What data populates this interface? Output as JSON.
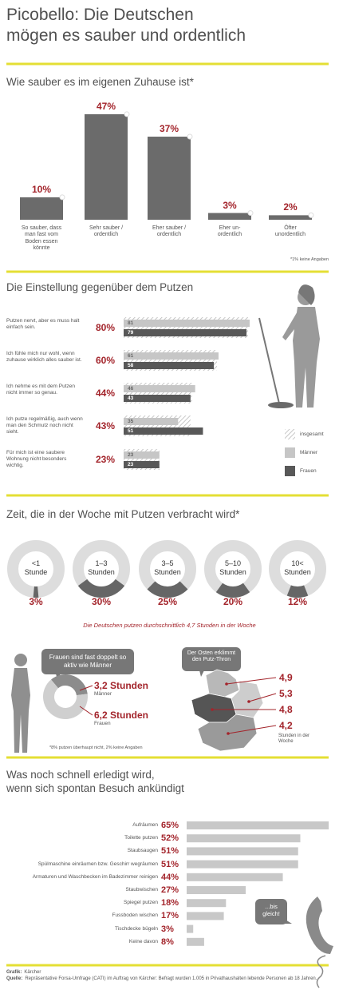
{
  "header": {
    "title": [
      "Picobello: Die Deutschen",
      "mögen es sauber und ordentlich"
    ]
  },
  "chart_data": [
    {
      "type": "bar",
      "title": "Wie sauber es im eigenen Zuhause ist*",
      "categories": [
        "So sauber, dass man fast vom Boden essen könnte",
        "Sehr sauber / ordentlich",
        "Eher sauber / ordentlich",
        "Eher un-ordentlich",
        "Öfter unordentlich"
      ],
      "values": [
        10,
        47,
        37,
        3,
        2
      ],
      "value_labels": [
        "10%",
        "47%",
        "37%",
        "3%",
        "2%"
      ],
      "color": "#6b6b6b",
      "label_color": "#a3242b",
      "note": "*1% keine Angaben"
    },
    {
      "type": "grouped-hbar",
      "title": "Die Einstellung gegenüber dem Putzen",
      "categories": [
        "Putzen nervt, aber es muss halt einfach sein.",
        "Ich fühle mich nur wohl, wenn zuhause wirklich alles sauber ist.",
        "Ich nehme es mit dem Putzen nicht immer so genau.",
        "Ich putze regelmäßig, auch wenn man den Schmutz noch nicht sieht.",
        "Für mich ist eine saubere Wohnung nicht besonders wichtig."
      ],
      "series": [
        {
          "name": "insgesamt",
          "color": "#b5b5b5",
          "pattern": "hatch",
          "values": [
            80,
            60,
            44,
            43,
            23
          ],
          "value_labels": [
            "80%",
            "60%",
            "44%",
            "43%",
            "23%"
          ]
        },
        {
          "name": "Männer",
          "color": "#c6c6c6",
          "values": [
            81,
            61,
            46,
            35,
            23
          ]
        },
        {
          "name": "Frauen",
          "color": "#585858",
          "values": [
            79,
            58,
            43,
            51,
            23
          ]
        }
      ],
      "label_color": "#a3242b"
    },
    {
      "type": "donut-row",
      "title": "Zeit, die in der Woche mit Putzen verbracht wird*",
      "categories": [
        "<1 Stunde",
        "1–3 Stunden",
        "3–5 Stunden",
        "5–10 Stunden",
        "10< Stunden"
      ],
      "values": [
        3,
        30,
        25,
        20,
        12
      ],
      "value_labels": [
        "3%",
        "30%",
        "25%",
        "20%",
        "12%"
      ],
      "color": "#666666",
      "track_color": "#dddddd",
      "label_color": "#a3242b",
      "subtitle": "Die Deutschen putzen durchschnittlich 4,7 Stunden in der Woche"
    },
    {
      "type": "donut",
      "callout": "Frauen sind fast doppelt so aktiv wie Männer",
      "categories": [
        "Männer",
        "Frauen"
      ],
      "values": [
        3.2,
        6.2
      ],
      "value_labels": [
        "3,2 Stunden",
        "6,2 Stunden"
      ],
      "colors": [
        "#8c8c8c",
        "#cfcfcf"
      ],
      "label_color": "#a3242b",
      "note": "*8% putzen überhaupt nicht, 2% keine Angaben"
    },
    {
      "type": "map",
      "callout": "Der Osten erklimmt den Putz-Thron",
      "values": [
        4.9,
        5.3,
        4.8,
        4.2
      ],
      "value_labels": [
        "4,9",
        "5,3",
        "4,8",
        "4,2"
      ],
      "unit_label": "Stunden in der Woche",
      "label_color": "#a3242b"
    },
    {
      "type": "hbar",
      "title": [
        "Was noch schnell erledigt wird,",
        "wenn sich spontan Besuch ankündigt"
      ],
      "categories": [
        "Aufräumen",
        "Toilette putzen",
        "Staubsaugen",
        "Spülmaschine einräumen bzw. Geschirr wegräumen",
        "Armaturen und Waschbecken im Badezimmer reinigen",
        "Staubwischen",
        "Spiegel putzen",
        "Fussboden wischen",
        "Tischdecke bügeln",
        "Keine davon"
      ],
      "values": [
        65,
        52,
        51,
        51,
        44,
        27,
        18,
        17,
        3,
        8
      ],
      "value_labels": [
        "65%",
        "52%",
        "51%",
        "51%",
        "44%",
        "27%",
        "18%",
        "17%",
        "3%",
        "8%"
      ],
      "color": "#c8c8c8",
      "label_color": "#a3242b",
      "callout": "...bis gleich!"
    }
  ],
  "footer": {
    "grafik_label": "Grafik:",
    "grafik": "Kärcher",
    "quelle_label": "Quelle:",
    "quelle": "Repräsentative Forsa-Umfrage (CATI) im Auftrag von Kärcher: Befragt wurden 1.005 in Privathaushalten lebende Personen ab 18 Jahren."
  }
}
